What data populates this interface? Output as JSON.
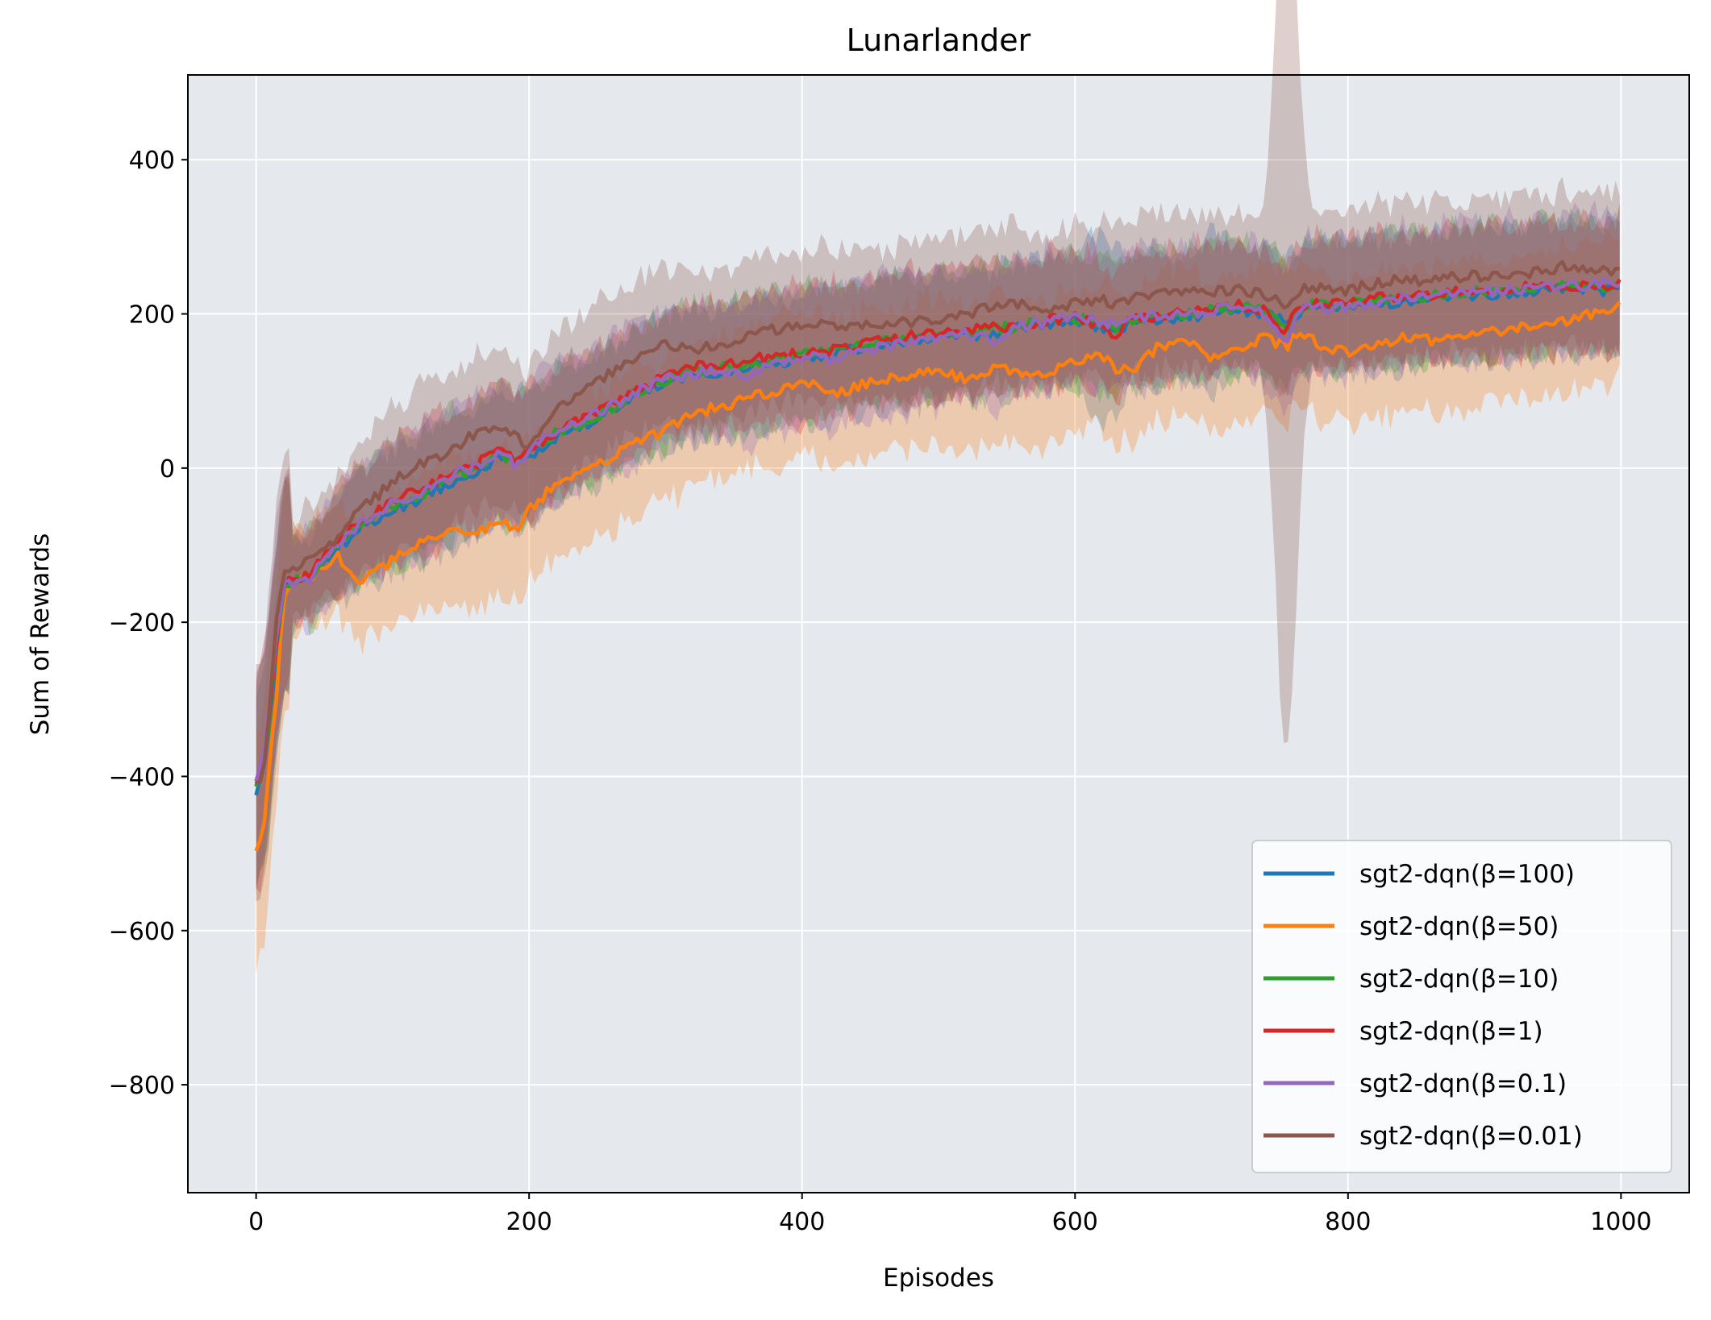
{
  "chart_data": {
    "type": "line",
    "title": "Lunarlander",
    "xlabel": "Episodes",
    "ylabel": "Sum of Rewards",
    "xlim": [
      -50,
      1050
    ],
    "ylim": [
      -940,
      510
    ],
    "xticks": [
      0,
      200,
      400,
      600,
      800,
      1000
    ],
    "xtick_labels": [
      "0",
      "200",
      "400",
      "600",
      "800",
      "1000"
    ],
    "yticks": [
      -800,
      -600,
      -400,
      -200,
      0,
      200,
      400
    ],
    "ytick_labels": [
      "−800",
      "−600",
      "−400",
      "−200",
      "0",
      "200",
      "400"
    ],
    "grid": true,
    "legend_position": "bottom-right",
    "shaded_bands": true,
    "x": [
      0,
      3,
      6,
      10,
      15,
      20,
      25,
      30,
      40,
      50,
      60,
      75,
      90,
      100,
      120,
      140,
      160,
      180,
      190,
      200,
      220,
      240,
      260,
      280,
      300,
      320,
      340,
      360,
      380,
      400,
      420,
      440,
      460,
      480,
      500,
      520,
      540,
      560,
      580,
      600,
      620,
      630,
      640,
      660,
      680,
      700,
      720,
      740,
      750,
      755,
      760,
      770,
      780,
      800,
      820,
      840,
      860,
      880,
      900,
      920,
      940,
      960,
      980,
      1000
    ],
    "series": [
      {
        "name": "sgt2-dqn(β=100)",
        "color": "#1f77b4",
        "band_width": 85,
        "band_extra": {
          "615": 30,
          "625": 30,
          "700": 20
        },
        "values": [
          -420,
          -400,
          -385,
          -330,
          -240,
          -160,
          -150,
          -145,
          -145,
          -120,
          -105,
          -80,
          -65,
          -55,
          -40,
          -20,
          -5,
          15,
          5,
          15,
          40,
          55,
          75,
          95,
          110,
          120,
          125,
          130,
          135,
          140,
          145,
          155,
          160,
          165,
          168,
          172,
          175,
          182,
          188,
          190,
          180,
          172,
          188,
          192,
          195,
          200,
          205,
          200,
          192,
          185,
          195,
          210,
          210,
          210,
          215,
          215,
          220,
          225,
          225,
          228,
          232,
          235,
          230,
          232
        ]
      },
      {
        "name": "sgt2-dqn(β=50)",
        "color": "#ff7f0e",
        "band_width": 95,
        "band_extra": {},
        "values": [
          -490,
          -480,
          -460,
          -380,
          -300,
          -170,
          -150,
          -140,
          -140,
          -130,
          -115,
          -155,
          -130,
          -120,
          -95,
          -80,
          -85,
          -70,
          -80,
          -55,
          -20,
          -5,
          15,
          35,
          50,
          70,
          80,
          90,
          100,
          115,
          95,
          105,
          115,
          120,
          125,
          115,
          130,
          125,
          120,
          140,
          145,
          130,
          125,
          155,
          165,
          145,
          155,
          170,
          160,
          155,
          170,
          175,
          160,
          150,
          160,
          170,
          165,
          170,
          175,
          180,
          185,
          190,
          200,
          212
        ]
      },
      {
        "name": "sgt2-dqn(β=10)",
        "color": "#2ca02c",
        "band_width": 85,
        "band_extra": {},
        "values": [
          -410,
          -395,
          -380,
          -320,
          -230,
          -155,
          -148,
          -143,
          -140,
          -118,
          -100,
          -75,
          -60,
          -50,
          -35,
          -15,
          0,
          18,
          8,
          20,
          45,
          60,
          78,
          98,
          112,
          125,
          130,
          135,
          140,
          148,
          150,
          158,
          165,
          170,
          172,
          175,
          180,
          185,
          190,
          195,
          188,
          182,
          192,
          196,
          200,
          205,
          210,
          205,
          188,
          182,
          198,
          212,
          212,
          212,
          218,
          220,
          224,
          228,
          228,
          230,
          235,
          238,
          235,
          238
        ]
      },
      {
        "name": "sgt2-dqn(β=1)",
        "color": "#d62728",
        "band_width": 85,
        "band_extra": {},
        "values": [
          -405,
          -395,
          -375,
          -315,
          -225,
          -150,
          -145,
          -140,
          -138,
          -112,
          -95,
          -70,
          -55,
          -40,
          -30,
          -10,
          5,
          22,
          10,
          25,
          48,
          65,
          82,
          102,
          118,
          130,
          135,
          140,
          145,
          150,
          152,
          160,
          165,
          172,
          175,
          178,
          182,
          186,
          192,
          196,
          185,
          170,
          190,
          198,
          202,
          206,
          212,
          205,
          185,
          180,
          198,
          214,
          214,
          214,
          220,
          222,
          226,
          228,
          230,
          232,
          236,
          238,
          236,
          240
        ]
      },
      {
        "name": "sgt2-dqn(β=0.1)",
        "color": "#9467bd",
        "band_width": 90,
        "band_extra": {},
        "values": [
          -400,
          -390,
          -370,
          -310,
          -220,
          -148,
          -150,
          -148,
          -145,
          -115,
          -98,
          -72,
          -58,
          -45,
          -32,
          -12,
          2,
          20,
          5,
          22,
          46,
          62,
          80,
          100,
          115,
          122,
          128,
          120,
          138,
          145,
          140,
          150,
          158,
          165,
          170,
          175,
          165,
          185,
          190,
          195,
          190,
          185,
          195,
          198,
          200,
          204,
          208,
          200,
          175,
          165,
          190,
          208,
          208,
          208,
          214,
          218,
          222,
          226,
          228,
          230,
          234,
          236,
          238,
          240
        ]
      },
      {
        "name": "sgt2-dqn(β=0.01)",
        "color": "#8c564b",
        "band_width": 100,
        "band_extra": {
          "750": 200,
          "755": 230,
          "760": 200
        },
        "values": [
          -415,
          -400,
          -380,
          -310,
          -200,
          -140,
          -135,
          -130,
          -120,
          -110,
          -90,
          -50,
          -35,
          -15,
          5,
          20,
          45,
          55,
          40,
          25,
          75,
          100,
          125,
          145,
          160,
          155,
          160,
          170,
          180,
          185,
          185,
          185,
          185,
          190,
          195,
          200,
          210,
          215,
          205,
          215,
          218,
          210,
          220,
          225,
          230,
          228,
          232,
          225,
          215,
          200,
          220,
          235,
          232,
          230,
          240,
          245,
          242,
          248,
          250,
          252,
          255,
          262,
          255,
          255
        ]
      }
    ]
  }
}
